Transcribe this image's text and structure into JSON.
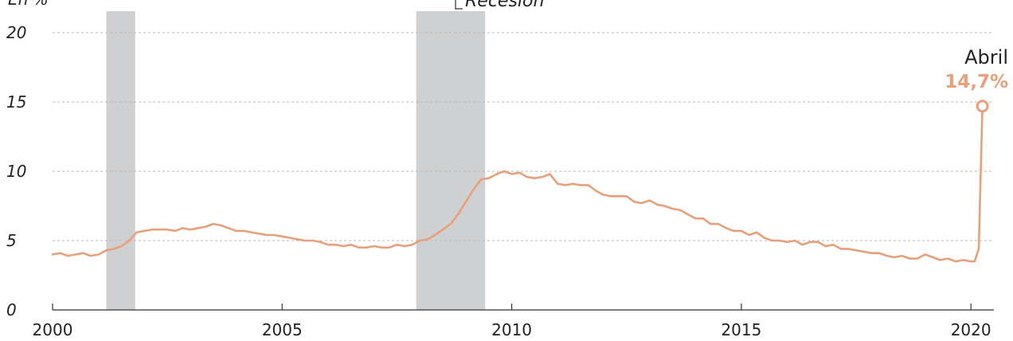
{
  "chart_data": {
    "type": "line",
    "y_unit_label": "En %",
    "legend": {
      "recession_label": "Recesión"
    },
    "xlim": [
      2000,
      2020.5
    ],
    "ylim": [
      0,
      20
    ],
    "x_ticks": [
      2000,
      2005,
      2010,
      2015,
      2020
    ],
    "y_ticks": [
      0,
      5,
      10,
      15,
      20
    ],
    "grid": "horizontal-dashed",
    "colors": {
      "line": "#E8A07C",
      "recession": "#CFD0D2",
      "grid": "#B8B8B8",
      "axis": "#333333"
    },
    "recessions": [
      {
        "start": 2001.17,
        "end": 2001.8
      },
      {
        "start": 2007.92,
        "end": 2009.42
      }
    ],
    "annotation": {
      "label": "Abril",
      "value_text": "14,7%",
      "x": 2020.25,
      "y": 14.7
    },
    "series": [
      {
        "points": [
          [
            2000.0,
            4.0
          ],
          [
            2000.17,
            4.1
          ],
          [
            2000.33,
            3.9
          ],
          [
            2000.5,
            4.0
          ],
          [
            2000.67,
            4.1
          ],
          [
            2000.83,
            3.9
          ],
          [
            2001.0,
            4.0
          ],
          [
            2001.17,
            4.3
          ],
          [
            2001.33,
            4.4
          ],
          [
            2001.5,
            4.6
          ],
          [
            2001.67,
            5.0
          ],
          [
            2001.83,
            5.6
          ],
          [
            2002.0,
            5.7
          ],
          [
            2002.17,
            5.8
          ],
          [
            2002.33,
            5.8
          ],
          [
            2002.5,
            5.8
          ],
          [
            2002.67,
            5.7
          ],
          [
            2002.83,
            5.9
          ],
          [
            2003.0,
            5.8
          ],
          [
            2003.17,
            5.9
          ],
          [
            2003.33,
            6.0
          ],
          [
            2003.5,
            6.2
          ],
          [
            2003.67,
            6.1
          ],
          [
            2003.83,
            5.9
          ],
          [
            2004.0,
            5.7
          ],
          [
            2004.17,
            5.7
          ],
          [
            2004.33,
            5.6
          ],
          [
            2004.5,
            5.5
          ],
          [
            2004.67,
            5.4
          ],
          [
            2004.83,
            5.4
          ],
          [
            2005.0,
            5.3
          ],
          [
            2005.17,
            5.2
          ],
          [
            2005.33,
            5.1
          ],
          [
            2005.5,
            5.0
          ],
          [
            2005.67,
            5.0
          ],
          [
            2005.83,
            4.9
          ],
          [
            2006.0,
            4.7
          ],
          [
            2006.17,
            4.7
          ],
          [
            2006.33,
            4.6
          ],
          [
            2006.5,
            4.7
          ],
          [
            2006.67,
            4.5
          ],
          [
            2006.83,
            4.5
          ],
          [
            2007.0,
            4.6
          ],
          [
            2007.17,
            4.5
          ],
          [
            2007.33,
            4.5
          ],
          [
            2007.5,
            4.7
          ],
          [
            2007.67,
            4.6
          ],
          [
            2007.83,
            4.7
          ],
          [
            2008.0,
            5.0
          ],
          [
            2008.17,
            5.1
          ],
          [
            2008.33,
            5.4
          ],
          [
            2008.5,
            5.8
          ],
          [
            2008.67,
            6.2
          ],
          [
            2008.83,
            6.9
          ],
          [
            2009.0,
            7.8
          ],
          [
            2009.17,
            8.7
          ],
          [
            2009.33,
            9.4
          ],
          [
            2009.5,
            9.5
          ],
          [
            2009.67,
            9.8
          ],
          [
            2009.83,
            10.0
          ],
          [
            2010.0,
            9.8
          ],
          [
            2010.17,
            9.9
          ],
          [
            2010.33,
            9.6
          ],
          [
            2010.5,
            9.5
          ],
          [
            2010.67,
            9.6
          ],
          [
            2010.83,
            9.8
          ],
          [
            2011.0,
            9.1
          ],
          [
            2011.17,
            9.0
          ],
          [
            2011.33,
            9.1
          ],
          [
            2011.5,
            9.0
          ],
          [
            2011.67,
            9.0
          ],
          [
            2011.83,
            8.6
          ],
          [
            2012.0,
            8.3
          ],
          [
            2012.17,
            8.2
          ],
          [
            2012.33,
            8.2
          ],
          [
            2012.5,
            8.2
          ],
          [
            2012.67,
            7.8
          ],
          [
            2012.83,
            7.7
          ],
          [
            2013.0,
            7.9
          ],
          [
            2013.17,
            7.6
          ],
          [
            2013.33,
            7.5
          ],
          [
            2013.5,
            7.3
          ],
          [
            2013.67,
            7.2
          ],
          [
            2013.83,
            6.9
          ],
          [
            2014.0,
            6.6
          ],
          [
            2014.17,
            6.6
          ],
          [
            2014.33,
            6.2
          ],
          [
            2014.5,
            6.2
          ],
          [
            2014.67,
            5.9
          ],
          [
            2014.83,
            5.7
          ],
          [
            2015.0,
            5.7
          ],
          [
            2015.17,
            5.4
          ],
          [
            2015.33,
            5.6
          ],
          [
            2015.5,
            5.2
          ],
          [
            2015.67,
            5.0
          ],
          [
            2015.83,
            5.0
          ],
          [
            2016.0,
            4.9
          ],
          [
            2016.17,
            5.0
          ],
          [
            2016.33,
            4.7
          ],
          [
            2016.5,
            4.9
          ],
          [
            2016.67,
            4.9
          ],
          [
            2016.83,
            4.6
          ],
          [
            2017.0,
            4.7
          ],
          [
            2017.17,
            4.4
          ],
          [
            2017.33,
            4.4
          ],
          [
            2017.5,
            4.3
          ],
          [
            2017.67,
            4.2
          ],
          [
            2017.83,
            4.1
          ],
          [
            2018.0,
            4.1
          ],
          [
            2018.17,
            3.9
          ],
          [
            2018.33,
            3.8
          ],
          [
            2018.5,
            3.9
          ],
          [
            2018.67,
            3.7
          ],
          [
            2018.83,
            3.7
          ],
          [
            2019.0,
            4.0
          ],
          [
            2019.17,
            3.8
          ],
          [
            2019.33,
            3.6
          ],
          [
            2019.5,
            3.7
          ],
          [
            2019.67,
            3.5
          ],
          [
            2019.83,
            3.6
          ],
          [
            2020.0,
            3.5
          ],
          [
            2020.08,
            3.5
          ],
          [
            2020.17,
            4.4
          ],
          [
            2020.25,
            14.7
          ]
        ]
      }
    ]
  }
}
